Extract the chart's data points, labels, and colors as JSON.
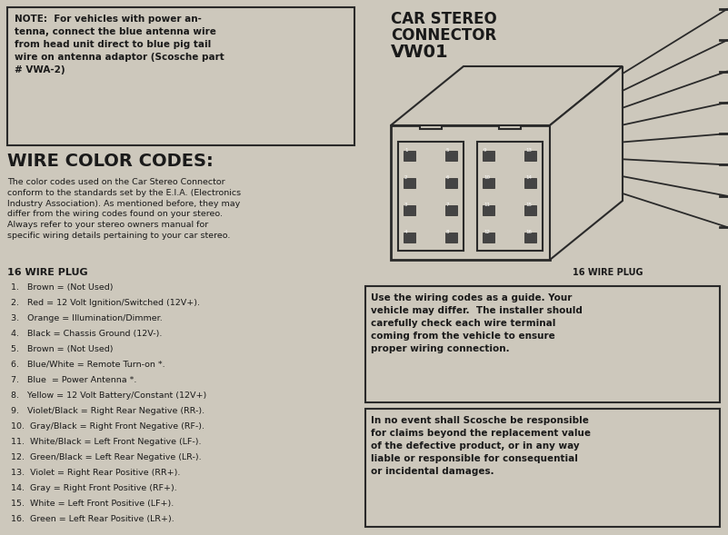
{
  "bg_color": "#cdc8bc",
  "note_text": "NOTE:  For vehicles with power an-\ntenna, connect the blue antenna wire\nfrom head unit direct to blue pig tail\nwire on antenna adaptor (Scosche part\n# VWA-2)",
  "wire_color_title": "WIRE COLOR CODES:",
  "wire_color_body": "The color codes used on the Car Stereo Connector\nconform to the standards set by the E.I.A. (Electronics\nIndustry Association). As mentioned before, they may\ndiffer from the wiring codes found on your stereo.\nAlways refer to your stereo owners manual for\nspecific wiring details pertaining to your car stereo.",
  "plug_label": "16 WIRE PLUG",
  "wire_list": [
    "1.   Brown = (Not Used)",
    "2.   Red = 12 Volt Ignition/Switched (12V+).",
    "3.   Orange = Illumination/Dimmer.",
    "4.   Black = Chassis Ground (12V-).",
    "5.   Brown = (Not Used)",
    "6.   Blue/White = Remote Turn-on *.",
    "7.   Blue  = Power Antenna *.",
    "8.   Yellow = 12 Volt Battery/Constant (12V+)",
    "9.   Violet/Black = Right Rear Negative (RR-).",
    "10.  Gray/Black = Right Front Negative (RF-).",
    "11.  White/Black = Left Front Negative (LF-).",
    "12.  Green/Black = Left Rear Negative (LR-).",
    "13.  Violet = Right Rear Positive (RR+).",
    "14.  Gray = Right Front Positive (RF+).",
    "15.  White = Left Front Positive (LF+).",
    "16.  Green = Left Rear Positive (LR+)."
  ],
  "connector_title_line1": "CAR STEREO",
  "connector_title_line2": "CONNECTOR",
  "connector_title_line3": "VW01",
  "plug_label2": "16 WIRE PLUG",
  "warning_box1_text": "Use the wiring codes as a guide. Your\nvehicle may differ.  The installer should\ncarefully check each wire terminal\ncoming from the vehicle to ensure\nproper wiring connection.",
  "warning_box2_text": "In no event shall Scosche be responsible\nfor claims beyond the replacement value\nof the defective product, or in any way\nliable or responsible for consequential\nor incidental damages.",
  "text_color": "#1a1a1a",
  "line_color": "#2a2a2a"
}
